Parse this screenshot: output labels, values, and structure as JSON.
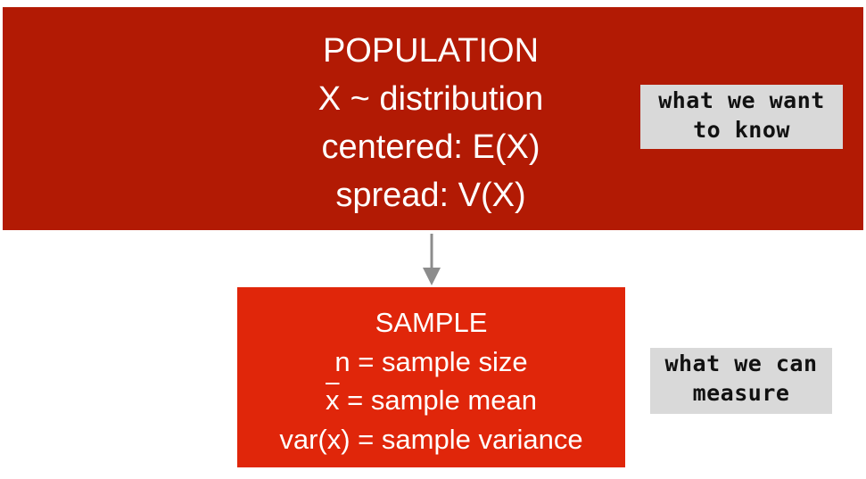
{
  "population": {
    "lines": [
      "POPULATION",
      "X ~ distribution",
      "centered: E(X)",
      "spread: V(X)"
    ]
  },
  "sample": {
    "title": "SAMPLE",
    "n_line": "n = sample size",
    "xbar_symbol": "x",
    "xbar_rest": " = sample mean",
    "var_line": "var(x) = sample variance"
  },
  "tags": {
    "want": [
      "what we want",
      "to know"
    ],
    "measure": [
      "what we can",
      "measure"
    ]
  },
  "colors": {
    "population_fill": "#b21a04",
    "sample_fill": "#e0260a",
    "tag_fill": "#d9d9d9",
    "arrow": "#8c8c8c"
  }
}
